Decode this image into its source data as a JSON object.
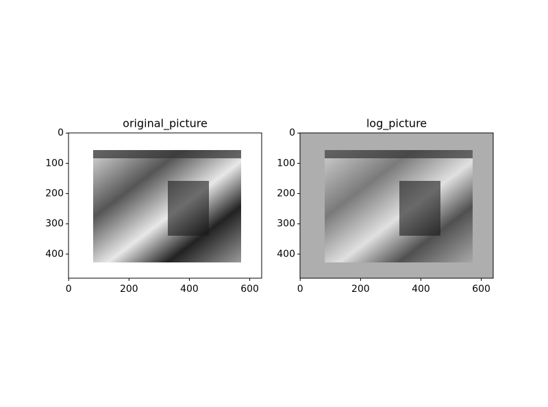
{
  "chart_data": [
    {
      "type": "image",
      "title": "original_picture",
      "background": "#ffffff",
      "xlim": [
        -0.5,
        639.5
      ],
      "ylim": [
        479.5,
        -0.5
      ],
      "xticks": [
        0,
        200,
        400,
        600
      ],
      "yticks": [
        0,
        100,
        200,
        300,
        400
      ]
    },
    {
      "type": "image",
      "title": "log_picture",
      "background": "#aeaeae",
      "xlim": [
        -0.5,
        639.5
      ],
      "ylim": [
        479.5,
        -0.5
      ],
      "xticks": [
        0,
        200,
        400,
        600
      ],
      "yticks": [
        0,
        100,
        200,
        300,
        400
      ]
    }
  ]
}
